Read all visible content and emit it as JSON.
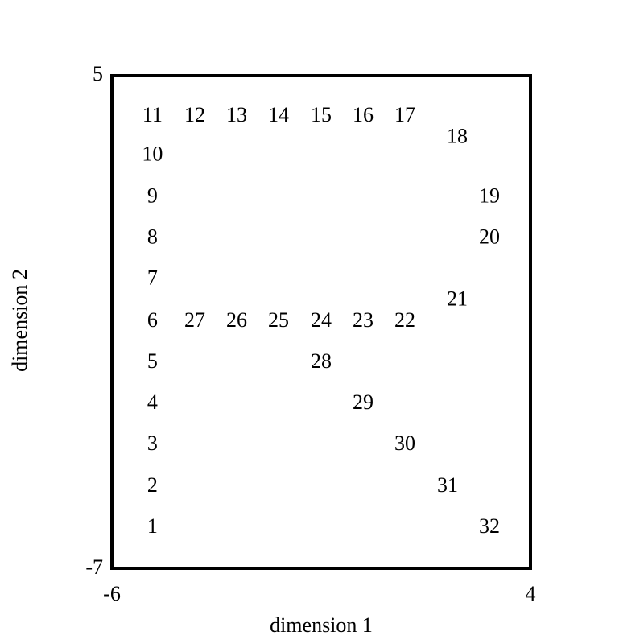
{
  "chart_data": {
    "type": "scatter",
    "xlabel": "dimension 1",
    "ylabel": "dimension 2",
    "xlim": [
      -6,
      4
    ],
    "ylim": [
      -7,
      5
    ],
    "x_ticks": [
      "-6",
      "4"
    ],
    "y_ticks": [
      "5",
      "-7"
    ],
    "grid": false,
    "marker": "text-label",
    "points": [
      {
        "label": "1",
        "x": -5.03,
        "y": -5.97
      },
      {
        "label": "2",
        "x": -5.03,
        "y": -4.97
      },
      {
        "label": "3",
        "x": -5.03,
        "y": -3.95
      },
      {
        "label": "4",
        "x": -5.03,
        "y": -2.95
      },
      {
        "label": "5",
        "x": -5.03,
        "y": -1.95
      },
      {
        "label": "6",
        "x": -5.03,
        "y": -0.95
      },
      {
        "label": "7",
        "x": -5.03,
        "y": 0.08
      },
      {
        "label": "8",
        "x": -5.03,
        "y": 1.08
      },
      {
        "label": "9",
        "x": -5.03,
        "y": 2.08
      },
      {
        "label": "10",
        "x": -5.03,
        "y": 3.1
      },
      {
        "label": "11",
        "x": -5.03,
        "y": 4.05
      },
      {
        "label": "12",
        "x": -4.02,
        "y": 4.05
      },
      {
        "label": "13",
        "x": -3.02,
        "y": 4.05
      },
      {
        "label": "14",
        "x": -2.02,
        "y": 4.05
      },
      {
        "label": "15",
        "x": -1.0,
        "y": 4.05
      },
      {
        "label": "16",
        "x": 0.0,
        "y": 4.05
      },
      {
        "label": "17",
        "x": 1.0,
        "y": 4.05
      },
      {
        "label": "18",
        "x": 2.25,
        "y": 3.53
      },
      {
        "label": "19",
        "x": 3.02,
        "y": 2.08
      },
      {
        "label": "20",
        "x": 3.02,
        "y": 1.08
      },
      {
        "label": "21",
        "x": 2.25,
        "y": -0.43
      },
      {
        "label": "22",
        "x": 1.0,
        "y": -0.95
      },
      {
        "label": "23",
        "x": 0.0,
        "y": -0.95
      },
      {
        "label": "24",
        "x": -1.0,
        "y": -0.95
      },
      {
        "label": "25",
        "x": -2.02,
        "y": -0.95
      },
      {
        "label": "26",
        "x": -3.02,
        "y": -0.95
      },
      {
        "label": "27",
        "x": -4.02,
        "y": -0.95
      },
      {
        "label": "28",
        "x": -1.0,
        "y": -1.95
      },
      {
        "label": "29",
        "x": 0.0,
        "y": -2.95
      },
      {
        "label": "30",
        "x": 1.0,
        "y": -3.95
      },
      {
        "label": "31",
        "x": 2.02,
        "y": -4.97
      },
      {
        "label": "32",
        "x": 3.02,
        "y": -5.97
      }
    ]
  }
}
